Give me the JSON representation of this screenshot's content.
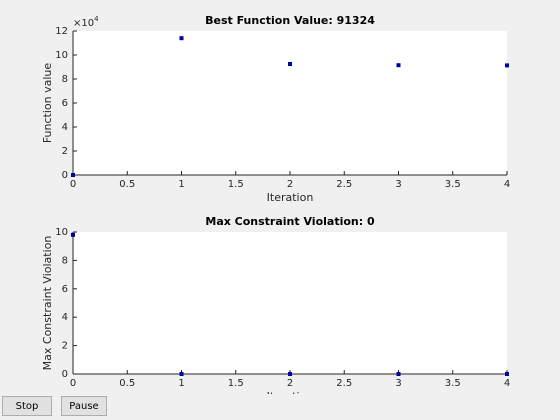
{
  "chart_data": [
    {
      "type": "scatter",
      "title": "Best Function Value: 91324",
      "x_label": "Iteration",
      "y_label": "Function value",
      "x": [
        0,
        1,
        2,
        3,
        4
      ],
      "values": [
        0,
        114000,
        92500,
        91500,
        91324
      ],
      "color": "#0000a0",
      "xlim": [
        0,
        4
      ],
      "xticks": [
        0,
        0.5,
        1,
        1.5,
        2,
        2.5,
        3,
        3.5,
        4
      ],
      "ylim": [
        0,
        120000
      ],
      "yticks": [
        {
          "value": 0,
          "label": "0"
        },
        {
          "value": 20000,
          "label": "2"
        },
        {
          "value": 40000,
          "label": "4"
        },
        {
          "value": 60000,
          "label": "6"
        },
        {
          "value": 80000,
          "label": "8"
        },
        {
          "value": 100000,
          "label": "10"
        },
        {
          "value": 120000,
          "label": "12"
        }
      ],
      "y_multiplier": {
        "base": "×10",
        "exponent": "4"
      }
    },
    {
      "type": "scatter",
      "title": "Max Constraint Violation: 0",
      "x_label": "Iteration",
      "y_label": "Max Constraint Violation",
      "x": [
        0,
        1,
        2,
        3,
        4
      ],
      "values": [
        9.8,
        0,
        0,
        0,
        0
      ],
      "color": "#0000a0",
      "xlim": [
        0,
        4
      ],
      "xticks": [
        0,
        0.5,
        1,
        1.5,
        2,
        2.5,
        3,
        3.5,
        4
      ],
      "ylim": [
        0,
        10
      ],
      "yticks": [
        0,
        2,
        4,
        6,
        8,
        10
      ]
    }
  ],
  "buttons": [
    "Stop",
    "Pause"
  ]
}
